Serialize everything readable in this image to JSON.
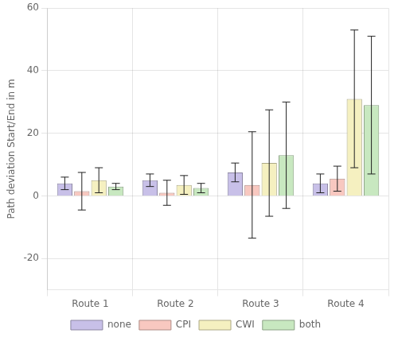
{
  "chart_data": {
    "type": "bar",
    "categories": [
      "Route 1",
      "Route 2",
      "Route 3",
      "Route 4"
    ],
    "series": [
      {
        "name": "none",
        "color": "#c8c0e8",
        "values": [
          4.0,
          5.0,
          7.5,
          4.0
        ],
        "errors_plus": [
          2.0,
          2.0,
          3.0,
          3.0
        ],
        "errors_minus": [
          2.0,
          2.0,
          3.0,
          3.0
        ]
      },
      {
        "name": "CPI",
        "color": "#f8c8c0",
        "values": [
          1.5,
          1.0,
          3.5,
          5.5
        ],
        "errors_plus": [
          6.0,
          4.0,
          17.0,
          4.0
        ],
        "errors_minus": [
          6.0,
          4.0,
          17.0,
          4.0
        ]
      },
      {
        "name": "CWI",
        "color": "#f5f0c0",
        "values": [
          5.0,
          3.5,
          10.5,
          31.0
        ],
        "errors_plus": [
          4.0,
          3.0,
          17.0,
          22.0
        ],
        "errors_minus": [
          4.0,
          3.0,
          17.0,
          22.0
        ]
      },
      {
        "name": "both",
        "color": "#c8e8c0",
        "values": [
          3.0,
          2.5,
          13.0,
          29.0
        ],
        "errors_plus": [
          1.0,
          1.5,
          17.0,
          22.0
        ],
        "errors_minus": [
          1.0,
          1.5,
          17.0,
          22.0
        ]
      }
    ],
    "ylabel": "Path deviation Start/End in m",
    "ylim": [
      -30,
      60
    ],
    "yticks": [
      -20,
      0,
      20,
      40,
      60
    ],
    "grid": true,
    "legend": "bottom"
  }
}
